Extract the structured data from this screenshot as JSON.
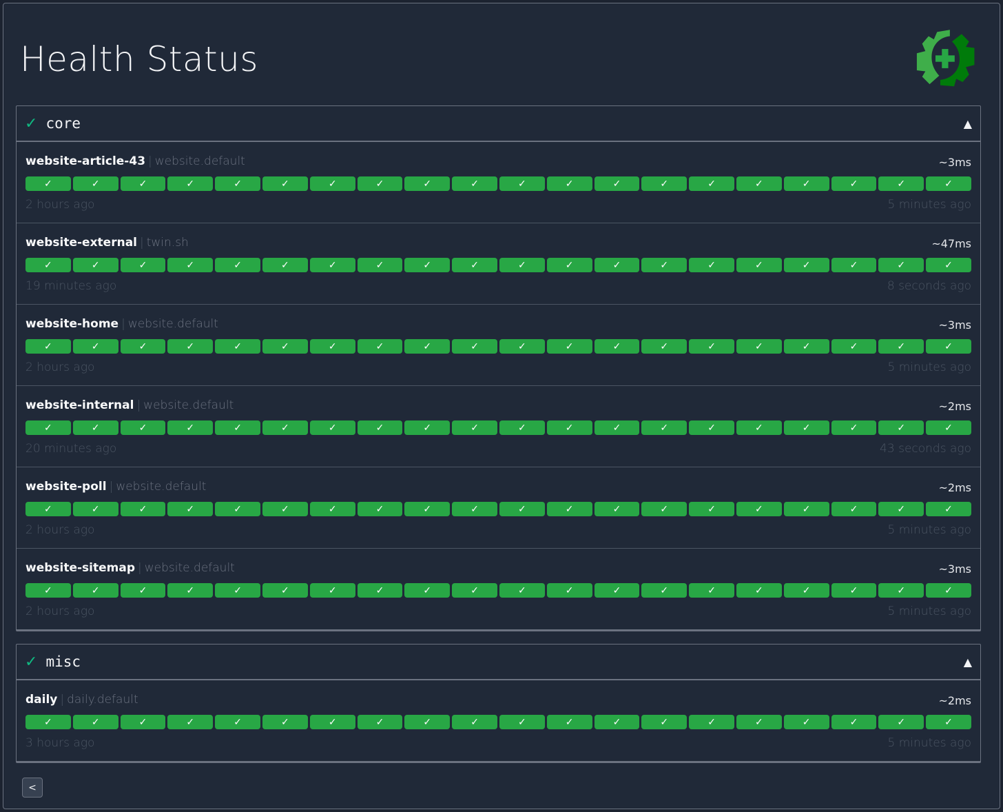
{
  "page": {
    "title": "Health Status",
    "logo": "gear-health-logo",
    "back_label": "<"
  },
  "colors": {
    "success": "#28a745",
    "group_check": "#10b981",
    "logo_light": "#3fae4a",
    "logo_dark": "#007b0a"
  },
  "groups": [
    {
      "name": "core",
      "status_icon": "✓",
      "toggle_icon": "▲",
      "services": [
        {
          "name": "website-article-43",
          "group": "website.default",
          "response": "~3ms",
          "oldest": "2 hours ago",
          "newest": "5 minutes ago",
          "results": 20,
          "result_icon": "✓"
        },
        {
          "name": "website-external",
          "group": "twin.sh",
          "response": "~47ms",
          "oldest": "19 minutes ago",
          "newest": "8 seconds ago",
          "results": 20,
          "result_icon": "✓"
        },
        {
          "name": "website-home",
          "group": "website.default",
          "response": "~3ms",
          "oldest": "2 hours ago",
          "newest": "5 minutes ago",
          "results": 20,
          "result_icon": "✓"
        },
        {
          "name": "website-internal",
          "group": "website.default",
          "response": "~2ms",
          "oldest": "20 minutes ago",
          "newest": "43 seconds ago",
          "results": 20,
          "result_icon": "✓"
        },
        {
          "name": "website-poll",
          "group": "website.default",
          "response": "~2ms",
          "oldest": "2 hours ago",
          "newest": "5 minutes ago",
          "results": 20,
          "result_icon": "✓"
        },
        {
          "name": "website-sitemap",
          "group": "website.default",
          "response": "~3ms",
          "oldest": "2 hours ago",
          "newest": "5 minutes ago",
          "results": 20,
          "result_icon": "✓"
        }
      ]
    },
    {
      "name": "misc",
      "status_icon": "✓",
      "toggle_icon": "▲",
      "services": [
        {
          "name": "daily",
          "group": "daily.default",
          "response": "~2ms",
          "oldest": "3 hours ago",
          "newest": "5 minutes ago",
          "results": 20,
          "result_icon": "✓"
        }
      ]
    }
  ]
}
